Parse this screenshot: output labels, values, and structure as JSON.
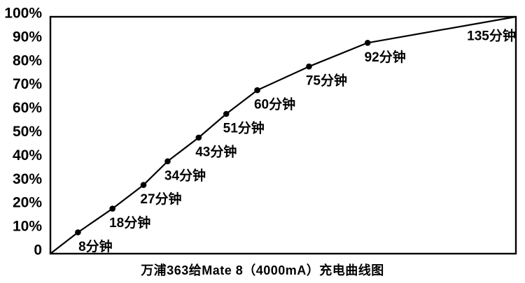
{
  "chart_data": {
    "type": "line",
    "title": "万浦363给Mate 8（4000mA）充电曲线图",
    "xlabel": "",
    "ylabel": "",
    "x_unit": "分钟",
    "y_unit": "%",
    "xlim": [
      0,
      135
    ],
    "ylim": [
      0,
      100
    ],
    "grid": false,
    "legend": false,
    "background_color": "#ffffff",
    "line_color": "#000000",
    "marker_color": "#000000",
    "axis_color": "#000000",
    "text_color": "#000000",
    "y_ticks": [
      {
        "value": 0,
        "label": "0"
      },
      {
        "value": 10,
        "label": "10%"
      },
      {
        "value": 20,
        "label": "20%"
      },
      {
        "value": 30,
        "label": "30%"
      },
      {
        "value": 40,
        "label": "40%"
      },
      {
        "value": 50,
        "label": "50%"
      },
      {
        "value": 60,
        "label": "60%"
      },
      {
        "value": 70,
        "label": "70%"
      },
      {
        "value": 80,
        "label": "80%"
      },
      {
        "value": 90,
        "label": "90%"
      },
      {
        "value": 100,
        "label": "100%"
      }
    ],
    "points": [
      {
        "minutes": 0,
        "percent": 0,
        "label": "",
        "marker": false
      },
      {
        "minutes": 8,
        "percent": 9,
        "label": "8分钟",
        "marker": true
      },
      {
        "minutes": 18,
        "percent": 19,
        "label": "18分钟",
        "marker": true
      },
      {
        "minutes": 27,
        "percent": 29,
        "label": "27分钟",
        "marker": true
      },
      {
        "minutes": 34,
        "percent": 39,
        "label": "34分钟",
        "marker": true
      },
      {
        "minutes": 43,
        "percent": 49,
        "label": "43分钟",
        "marker": true
      },
      {
        "minutes": 51,
        "percent": 59,
        "label": "51分钟",
        "marker": true
      },
      {
        "minutes": 60,
        "percent": 69,
        "label": "60分钟",
        "marker": true
      },
      {
        "minutes": 75,
        "percent": 79,
        "label": "75分钟",
        "marker": true
      },
      {
        "minutes": 92,
        "percent": 89,
        "label": "92分钟",
        "marker": true
      },
      {
        "minutes": 135,
        "percent": 100,
        "label": "135分钟",
        "marker": false
      }
    ]
  }
}
